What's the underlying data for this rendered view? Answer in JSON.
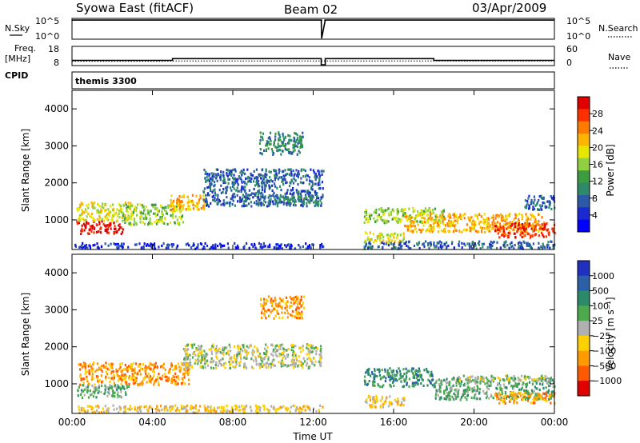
{
  "header": {
    "station": "Syowa East (fitACF)",
    "beam": "Beam 02",
    "date": "03/Apr/2009"
  },
  "cpid_label": "CPID",
  "cpid_value": "themis 3300",
  "chart_data": [
    {
      "type": "line",
      "name": "noise-panel",
      "left_labels": [
        "N.Sky"
      ],
      "right_labels": [
        "N.Search"
      ],
      "left_ticks": [
        "10^5",
        "10^0"
      ],
      "right_ticks": [
        "10^5",
        "10^0"
      ],
      "series": [
        {
          "name": "N.Sky",
          "style": "solid",
          "x": [
            0,
            12.4,
            12.42,
            12.6,
            24
          ],
          "y": [
            60000,
            60000,
            1,
            60000,
            60000
          ]
        },
        {
          "name": "N.Search",
          "style": "dotted",
          "x": [
            0,
            24
          ],
          "y": [
            60000,
            60000
          ]
        }
      ]
    },
    {
      "type": "line",
      "name": "freq-panel",
      "left_labels": [
        "Freq.",
        "[MHz]"
      ],
      "right_labels": [
        "Nave"
      ],
      "left_ticks": [
        "18",
        "8"
      ],
      "right_ticks": [
        "60",
        "0"
      ],
      "ylim": [
        8,
        18
      ],
      "series": [
        {
          "name": "Freq",
          "style": "solid",
          "x": [
            0,
            5,
            5,
            12.4,
            12.4,
            12.6,
            12.6,
            18,
            18,
            24
          ],
          "y": [
            10.5,
            10.5,
            11.5,
            11.5,
            8,
            8,
            11.5,
            11.5,
            10.5,
            10.5
          ]
        },
        {
          "name": "Nave",
          "style": "dotted",
          "x": [
            0,
            4.5,
            5,
            24
          ],
          "y": [
            12,
            12,
            13,
            13
          ]
        }
      ]
    },
    {
      "type": "heatmap",
      "name": "power-panel",
      "ylabel": "Slant Range [km]",
      "ylim": [
        200,
        4500
      ],
      "y_ticks": [
        1000,
        2000,
        3000,
        4000
      ],
      "xlim": [
        0,
        24
      ],
      "x_ticks": [
        "00:00",
        "04:00",
        "08:00",
        "12:00",
        "16:00",
        "20:00",
        "00:00"
      ],
      "colorbar_label": "Power [dB]",
      "colorbar_ticks": [
        "28",
        "24",
        "20",
        "16",
        "12",
        "8",
        "4"
      ],
      "colorbar_colors": [
        "#e00000",
        "#ff3000",
        "#ff7a00",
        "#ffb400",
        "#e6e600",
        "#90d040",
        "#3c9c40",
        "#2f8a6a",
        "#2a5aa8",
        "#1a2ad0",
        "#0000ff"
      ],
      "regions": [
        {
          "t0": 0.2,
          "t1": 2.5,
          "r0": 650,
          "r1": 1000,
          "c": 0
        },
        {
          "t0": 0.2,
          "t1": 3.0,
          "r0": 1000,
          "r1": 1500,
          "c": 4
        },
        {
          "t0": 2.5,
          "t1": 5.5,
          "r0": 900,
          "r1": 1450,
          "c": 5
        },
        {
          "t0": 4.8,
          "t1": 6.6,
          "r0": 1300,
          "r1": 1700,
          "c": 3
        },
        {
          "t0": 6.5,
          "t1": 12.5,
          "r0": 1400,
          "r1": 2400,
          "c": 8
        },
        {
          "t0": 10.0,
          "t1": 12.3,
          "r0": 1450,
          "r1": 1700,
          "c": 7
        },
        {
          "t0": 9.3,
          "t1": 11.5,
          "r0": 2800,
          "r1": 3400,
          "c": 7
        },
        {
          "t0": 0.1,
          "t1": 12.5,
          "r0": 250,
          "r1": 400,
          "c": 9
        },
        {
          "t0": 14.5,
          "t1": 16.5,
          "r0": 400,
          "r1": 700,
          "c": 4
        },
        {
          "t0": 14.5,
          "t1": 18.5,
          "r0": 950,
          "r1": 1350,
          "c": 5
        },
        {
          "t0": 16.5,
          "t1": 23.5,
          "r0": 700,
          "r1": 1200,
          "c": 3
        },
        {
          "t0": 21.0,
          "t1": 24.0,
          "r0": 550,
          "r1": 950,
          "c": 1
        },
        {
          "t0": 14.5,
          "t1": 24.0,
          "r0": 250,
          "r1": 450,
          "c": 8
        },
        {
          "t0": 22.5,
          "t1": 24.0,
          "r0": 1300,
          "r1": 1700,
          "c": 8
        }
      ]
    },
    {
      "type": "heatmap",
      "name": "velocity-panel",
      "ylabel": "Slant Range [km]",
      "ylim": [
        200,
        4500
      ],
      "y_ticks": [
        1000,
        2000,
        3000,
        4000
      ],
      "xlim": [
        0,
        24
      ],
      "x_ticks": [
        "00:00",
        "04:00",
        "08:00",
        "12:00",
        "16:00",
        "20:00",
        "00:00"
      ],
      "xlabel": "Time UT",
      "colorbar_label": "Velocity [m s⁻¹]",
      "colorbar_ticks": [
        "1000",
        "500",
        "100",
        "25",
        "−25",
        "−100",
        "−500",
        "−1000"
      ],
      "colorbar_colors": [
        "#2030c0",
        "#2a60a8",
        "#2a8a6a",
        "#4caa4c",
        "#b0b0b0",
        "#ffd000",
        "#ff9a00",
        "#ff5a00",
        "#e00000"
      ],
      "regions": [
        {
          "t0": 0.2,
          "t1": 2.8,
          "r0": 650,
          "r1": 1000,
          "c": 3
        },
        {
          "t0": 0.3,
          "t1": 5.8,
          "r0": 1000,
          "r1": 1600,
          "c": 6
        },
        {
          "t0": 5.5,
          "t1": 12.4,
          "r0": 1450,
          "r1": 2100,
          "c": 4
        },
        {
          "t0": 9.3,
          "t1": 11.5,
          "r0": 2800,
          "r1": 3400,
          "c": 6
        },
        {
          "t0": 0.1,
          "t1": 12.5,
          "r0": 250,
          "r1": 450,
          "c": 5
        },
        {
          "t0": 14.5,
          "t1": 18.0,
          "r0": 950,
          "r1": 1450,
          "c": 2
        },
        {
          "t0": 14.5,
          "t1": 16.5,
          "r0": 400,
          "r1": 700,
          "c": 5
        },
        {
          "t0": 18.0,
          "t1": 24.0,
          "r0": 600,
          "r1": 1200,
          "c": 3
        },
        {
          "t0": 21.0,
          "t1": 24.0,
          "r0": 500,
          "r1": 800,
          "c": 6
        },
        {
          "t0": 19.0,
          "t1": 24.0,
          "r0": 1100,
          "r1": 1250,
          "c": 4
        }
      ]
    }
  ]
}
